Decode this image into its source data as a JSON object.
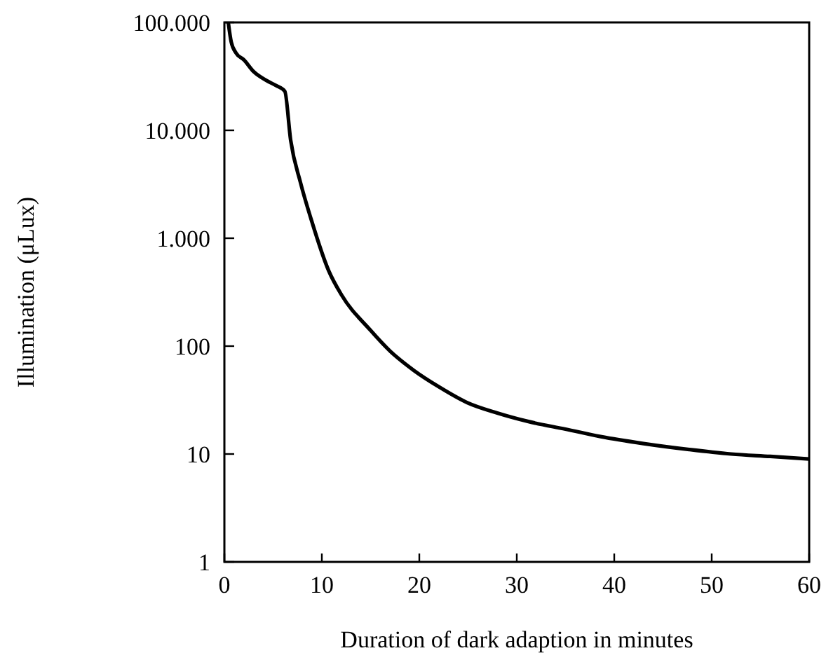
{
  "chart_data": {
    "type": "line",
    "xlabel": "Duration of dark adaption in minutes",
    "ylabel": "Illumination (μLux)",
    "log": "y",
    "xlim": [
      0,
      60
    ],
    "xticks": [
      0,
      10,
      20,
      30,
      40,
      50,
      60
    ],
    "ylim": [
      1,
      100000
    ],
    "yticks": [
      {
        "value": 1,
        "label": "1"
      },
      {
        "value": 10,
        "label": "10"
      },
      {
        "value": 100,
        "label": "100"
      },
      {
        "value": 1000,
        "label": "1.000"
      },
      {
        "value": 10000,
        "label": "10.000"
      },
      {
        "value": 100000,
        "label": "100.000"
      }
    ],
    "grid": false,
    "line_style": "solid",
    "marker": "none",
    "series": [
      {
        "color": "#000000",
        "x": [
          0.4,
          0.7,
          1.2,
          2,
          3,
          4.3,
          5.3,
          6.2,
          6.8,
          7.8,
          8.9,
          10.7,
          12,
          15,
          17,
          19.5,
          22,
          24.9,
          28,
          31.2,
          35,
          38.6,
          43,
          47.7,
          52,
          56,
          60
        ],
        "values": [
          100000,
          66000,
          52000,
          45000,
          35000,
          29000,
          26000,
          23000,
          8100,
          3300,
          1500,
          500,
          300,
          140,
          90,
          59,
          42,
          30,
          24,
          20,
          17,
          14.5,
          12.5,
          11,
          10,
          9.5,
          9
        ]
      }
    ]
  }
}
